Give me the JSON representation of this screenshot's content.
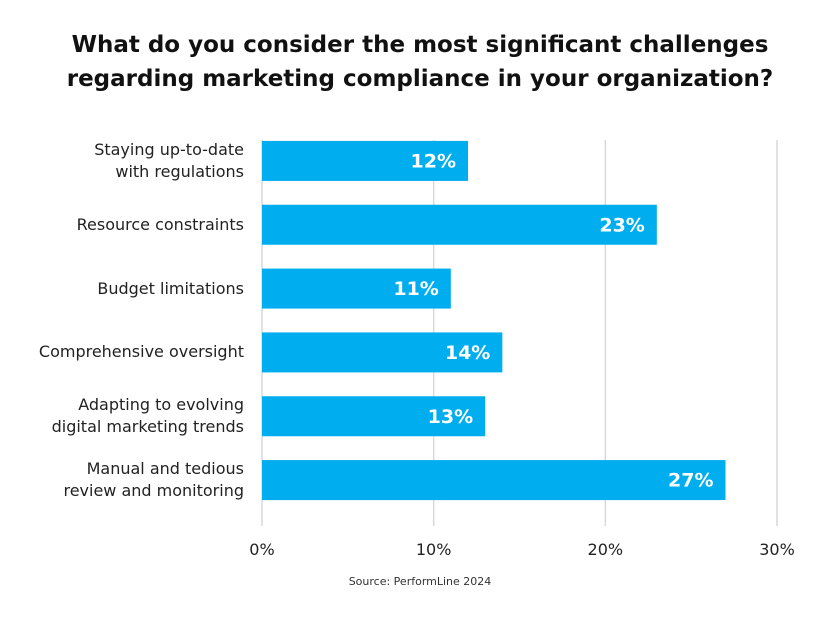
{
  "chart_data": {
    "type": "bar",
    "orientation": "horizontal",
    "title": "What do you consider the most significant challenges\nregarding marketing compliance in your organization?",
    "categories": [
      "Staying up-to-date\nwith regulations",
      "Resource constraints",
      "Budget limitations",
      "Comprehensive oversight",
      "Adapting to evolving\ndigital marketing trends",
      "Manual and tedious\nreview and monitoring"
    ],
    "values": [
      12,
      23,
      11,
      14,
      13,
      27
    ],
    "value_labels": [
      "12%",
      "23%",
      "11%",
      "14%",
      "13%",
      "27%"
    ],
    "color": "#00aeef",
    "xlim": [
      0,
      30
    ],
    "xticks": [
      {
        "value": 0,
        "label": "0%"
      },
      {
        "value": 10,
        "label": "10%"
      },
      {
        "value": 20,
        "label": "20%"
      },
      {
        "value": 30,
        "label": "30%"
      }
    ],
    "grid": true,
    "source": "Source: PerformLine 2024"
  }
}
